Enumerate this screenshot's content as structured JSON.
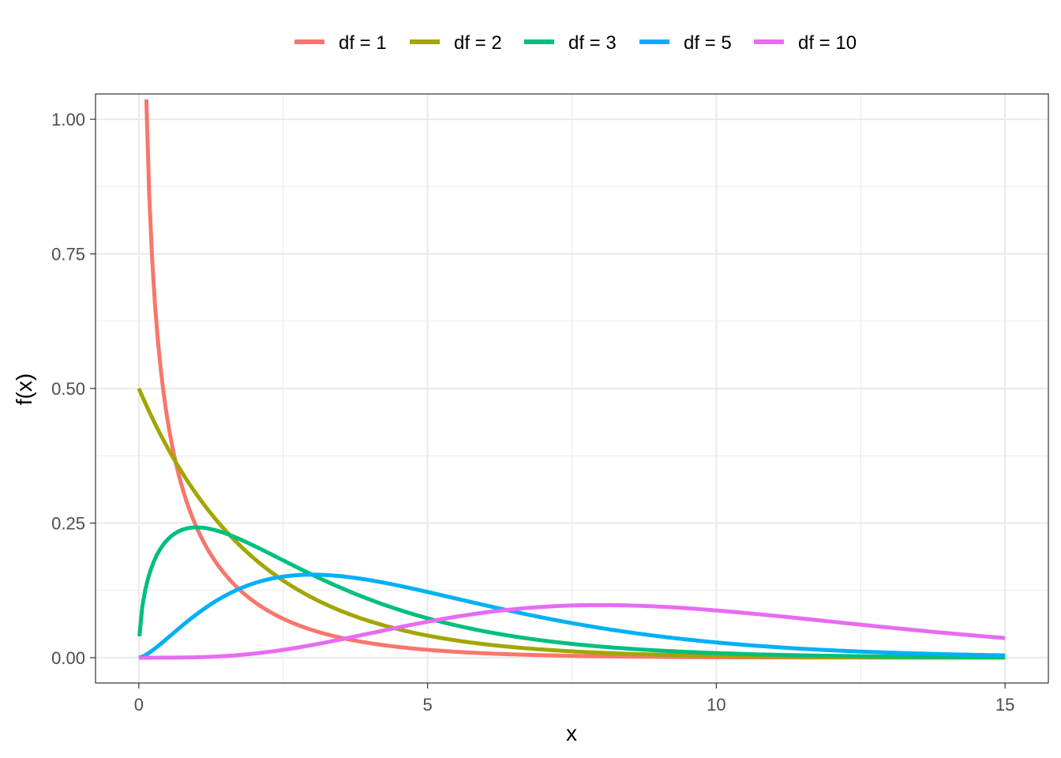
{
  "chart_data": {
    "type": "line",
    "title": "",
    "xlabel": "x",
    "ylabel": "f(x)",
    "xlim": [
      -0.75,
      15.75
    ],
    "ylim": [
      -0.047,
      1.047
    ],
    "x_ticks": [
      0,
      5,
      10,
      15
    ],
    "x_tick_labels": [
      "0",
      "5",
      "10",
      "15"
    ],
    "x_minor_ticks": [
      2.5,
      7.5,
      12.5
    ],
    "y_ticks": [
      0,
      0.25,
      0.5,
      0.75,
      1.0
    ],
    "y_tick_labels": [
      "0.00",
      "0.25",
      "0.50",
      "0.75",
      "1.00"
    ],
    "y_minor_ticks": [
      0.125,
      0.375,
      0.625,
      0.875
    ],
    "grid": true,
    "legend_position": "top",
    "series": [
      {
        "name": "df = 1",
        "df": 1,
        "color": "#F8766D",
        "x": [
          0.13,
          0.2,
          0.3,
          0.4,
          0.5,
          0.6,
          0.8,
          1.0,
          1.25,
          1.5,
          2.0,
          2.5,
          3.0,
          3.5,
          4.0,
          5.0,
          6.0,
          7.0,
          8.0,
          10.0,
          12.0,
          15.0
        ],
        "y": [
          1.0,
          0.807,
          0.627,
          0.516,
          0.439,
          0.381,
          0.298,
          0.242,
          0.189,
          0.154,
          0.104,
          0.073,
          0.051,
          0.037,
          0.027,
          0.015,
          0.008,
          0.004,
          0.003,
          0.001,
          0.0,
          0.0
        ]
      },
      {
        "name": "df = 2",
        "df": 2,
        "color": "#A3A500",
        "x": [
          0,
          0.5,
          1.0,
          1.5,
          2.0,
          2.5,
          3.0,
          4.0,
          5.0,
          6.0,
          7.0,
          8.0,
          10.0,
          12.0,
          15.0
        ],
        "y": [
          0.5,
          0.389,
          0.303,
          0.236,
          0.184,
          0.143,
          0.112,
          0.068,
          0.041,
          0.025,
          0.015,
          0.009,
          0.003,
          0.001,
          0.0
        ]
      },
      {
        "name": "df = 3",
        "df": 3,
        "color": "#00BF7D",
        "x": [
          0.01,
          0.05,
          0.1,
          0.2,
          0.3,
          0.5,
          0.75,
          1.0,
          1.5,
          2.0,
          2.5,
          3.0,
          4.0,
          5.0,
          6.0,
          7.0,
          8.0,
          10.0,
          12.0,
          15.0
        ],
        "y": [
          0.04,
          0.087,
          0.12,
          0.163,
          0.19,
          0.22,
          0.237,
          0.242,
          0.231,
          0.208,
          0.18,
          0.154,
          0.108,
          0.073,
          0.049,
          0.032,
          0.021,
          0.008,
          0.003,
          0.001
        ]
      },
      {
        "name": "df = 5",
        "df": 5,
        "color": "#00B0F6",
        "x": [
          0,
          0.25,
          0.5,
          0.75,
          1.0,
          1.5,
          2.0,
          2.5,
          3.0,
          3.5,
          4.0,
          5.0,
          6.0,
          7.0,
          8.0,
          9.0,
          10.0,
          12.0,
          15.0
        ],
        "y": [
          0.0,
          0.018,
          0.044,
          0.068,
          0.081,
          0.117,
          0.138,
          0.15,
          0.154,
          0.151,
          0.144,
          0.122,
          0.097,
          0.075,
          0.056,
          0.041,
          0.029,
          0.014,
          0.004
        ]
      },
      {
        "name": "df = 10",
        "df": 10,
        "color": "#E76BF3",
        "x": [
          0,
          1.0,
          2.0,
          3.0,
          4.0,
          5.0,
          6.0,
          7.0,
          8.0,
          9.0,
          10.0,
          11.0,
          12.0,
          13.0,
          14.0,
          15.0
        ],
        "y": [
          0.0,
          0.001,
          0.008,
          0.028,
          0.053,
          0.075,
          0.091,
          0.098,
          0.098,
          0.094,
          0.088,
          0.078,
          0.067,
          0.057,
          0.047,
          0.038
        ]
      }
    ]
  }
}
